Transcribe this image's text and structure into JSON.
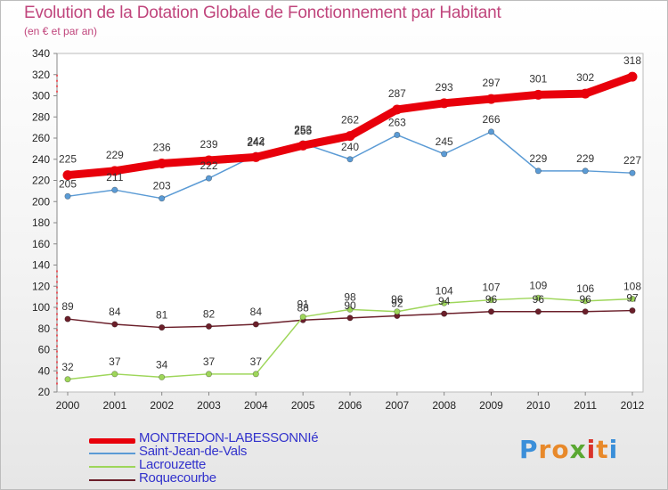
{
  "header": {
    "title": "Evolution de la Dotation Globale de Fonctionnement par Habitant",
    "subtitle": "(en € et par an)"
  },
  "logo": {
    "text": "Proxiti",
    "letters": [
      "P",
      "r",
      "o",
      "x",
      "i",
      "t",
      "i"
    ],
    "colors": [
      "#3b8fd9",
      "#e8892a",
      "#e8892a",
      "#5aa832",
      "#d9342b",
      "#e8892a",
      "#3b8fd9"
    ]
  },
  "chart_data": {
    "type": "line",
    "title": "Evolution de la Dotation Globale de Fonctionnement par Habitant",
    "subtitle": "(en € et par an)",
    "xlabel": "",
    "ylabel": "",
    "x": [
      2000,
      2001,
      2002,
      2003,
      2004,
      2005,
      2006,
      2007,
      2008,
      2009,
      2010,
      2011,
      2012
    ],
    "ylim": [
      20,
      340
    ],
    "yticks": [
      20,
      40,
      60,
      80,
      100,
      120,
      140,
      160,
      180,
      200,
      220,
      240,
      260,
      280,
      300,
      320,
      340
    ],
    "grid": false,
    "legend_position": "bottom-left",
    "series": [
      {
        "name": "MONTREDON-LABESSONNIé",
        "color": "#e8000b",
        "values": [
          225,
          229,
          236,
          239,
          242,
          253,
          262,
          287,
          293,
          297,
          301,
          302,
          318
        ],
        "labels": [
          "225",
          "229",
          "236",
          "239",
          "242",
          "253",
          "262",
          "287",
          "293",
          "297",
          "301",
          "302",
          "318"
        ]
      },
      {
        "name": "Saint-Jean-de-Vals",
        "color": "#5b9bd5",
        "values": [
          205,
          211,
          203,
          222,
          244,
          255,
          240,
          263,
          245,
          266,
          229,
          229,
          227
        ],
        "labels": [
          "205",
          "211",
          "203",
          "222",
          "244",
          "255",
          "240",
          "263",
          "245",
          "266",
          "229",
          "229",
          "227"
        ]
      },
      {
        "name": "Lacrouzette",
        "color": "#9ed65a",
        "values": [
          32,
          37,
          34,
          37,
          37,
          91,
          98,
          96,
          104,
          107,
          109,
          106,
          108
        ],
        "labels": [
          "32",
          "37",
          "34",
          "37",
          "37",
          "91",
          "98",
          "96",
          "104",
          "107",
          "109",
          "106",
          "108"
        ]
      },
      {
        "name": "Roquecourbe",
        "color": "#6b1f2a",
        "values": [
          89,
          84,
          81,
          82,
          84,
          88,
          90,
          92,
          94,
          96,
          96,
          96,
          97
        ],
        "labels": [
          "89",
          "84",
          "81",
          "82",
          "84",
          "88",
          "90",
          "92",
          "94",
          "96",
          "96",
          "96",
          "97"
        ]
      }
    ]
  }
}
